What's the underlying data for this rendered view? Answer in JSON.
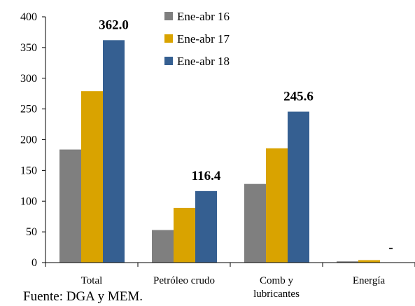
{
  "chart_data": {
    "type": "bar",
    "categories": [
      [
        "Total"
      ],
      [
        "Petróleo crudo"
      ],
      [
        "Comb y",
        "lubricantes"
      ],
      [
        "Energía"
      ]
    ],
    "series": [
      {
        "name": "Ene-abr 16",
        "color": "#7f7f7f",
        "values": [
          184,
          53,
          128,
          2
        ]
      },
      {
        "name": "Ene-abr 17",
        "color": "#d9a300",
        "values": [
          279,
          89,
          186,
          4
        ]
      },
      {
        "name": "Ene-abr 18",
        "color": "#355f91",
        "values": [
          362.0,
          116.4,
          245.6,
          0
        ]
      }
    ],
    "data_labels": [
      "362.0",
      "116.4",
      "245.6",
      "-"
    ],
    "ylim": [
      0,
      400
    ],
    "yticks": [
      0,
      50,
      100,
      150,
      200,
      250,
      300,
      350,
      400
    ],
    "legend_position": "top-center",
    "grid": false
  },
  "source": "Fuente: DGA y MEM."
}
